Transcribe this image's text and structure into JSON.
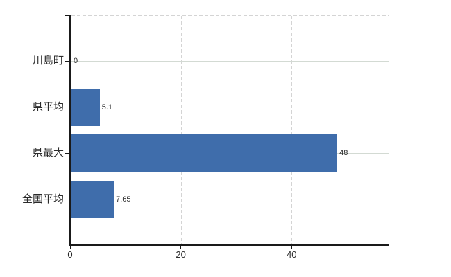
{
  "chart_data": {
    "type": "bar",
    "orientation": "horizontal",
    "title": "",
    "xlabel": "",
    "ylabel": "",
    "categories": [
      "川島町",
      "県平均",
      "県最大",
      "全国平均"
    ],
    "values": [
      0,
      5.1,
      48,
      7.65
    ],
    "value_labels": [
      "0",
      "5.1",
      "48",
      "7.65"
    ],
    "xlim": [
      0,
      57.5
    ],
    "xticks": [
      0,
      20,
      40
    ],
    "xtick_labels": [
      "0",
      "20",
      "40"
    ],
    "grid": true,
    "legend": "none",
    "colors": {
      "bar": "#3f6dab",
      "axis": "#1a1a1a",
      "gridline_solid": "#d3dad3",
      "gridline_dashed": "#d4d4d4",
      "text": "#2b2b2b",
      "background": "#ffffff"
    }
  }
}
